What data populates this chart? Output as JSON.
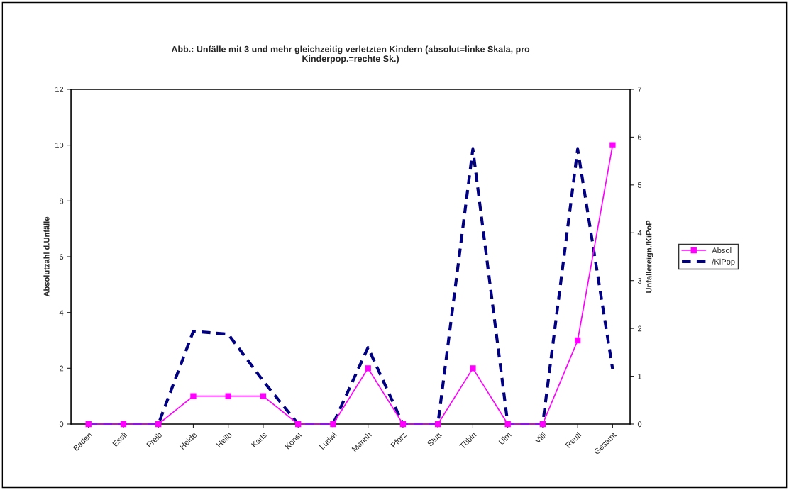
{
  "chart_data": {
    "type": "line",
    "title": "Abb.: Unfälle mit 3 und mehr gleichzeitig verletzten Kindern (absolut=linke Skala, pro\nKinderpop.=rechte Sk.)",
    "ylabel": "Absolutzahl d.Unfälle",
    "y2label": "Unfallereign./KiPoP",
    "categories": [
      "Baden",
      "Essli",
      "Freib",
      "Heide",
      "Heilb",
      "Karls",
      "Konst",
      "Ludwi",
      "Mannh",
      "Pforz",
      "Stutt",
      "Tübin",
      "Ulm",
      "Villi",
      "Reutl",
      "Gesamt"
    ],
    "series": [
      {
        "name": "Absol",
        "color": "#ff00ff",
        "marker": "square",
        "line_style": "solid",
        "values": [
          0,
          0,
          0,
          1,
          1,
          1,
          0,
          0,
          2,
          0,
          0,
          2,
          0,
          0,
          3,
          10
        ]
      },
      {
        "name": "/KiPop",
        "color": "#000080",
        "marker": "none",
        "line_style": "dashed",
        "axis": "y2",
        "values": [
          0,
          0,
          0,
          1.94,
          1.88,
          0.9,
          0,
          0,
          1.6,
          0,
          0,
          5.75,
          0,
          0,
          5.75,
          1.15
        ]
      }
    ],
    "ylim": [
      0,
      12
    ],
    "yticks": [
      0,
      2,
      4,
      6,
      8,
      10,
      12
    ],
    "y2lim": [
      0,
      7
    ],
    "y2ticks": [
      0,
      1,
      2,
      3,
      4,
      5,
      6,
      7
    ],
    "grid": false,
    "legend": "right"
  }
}
